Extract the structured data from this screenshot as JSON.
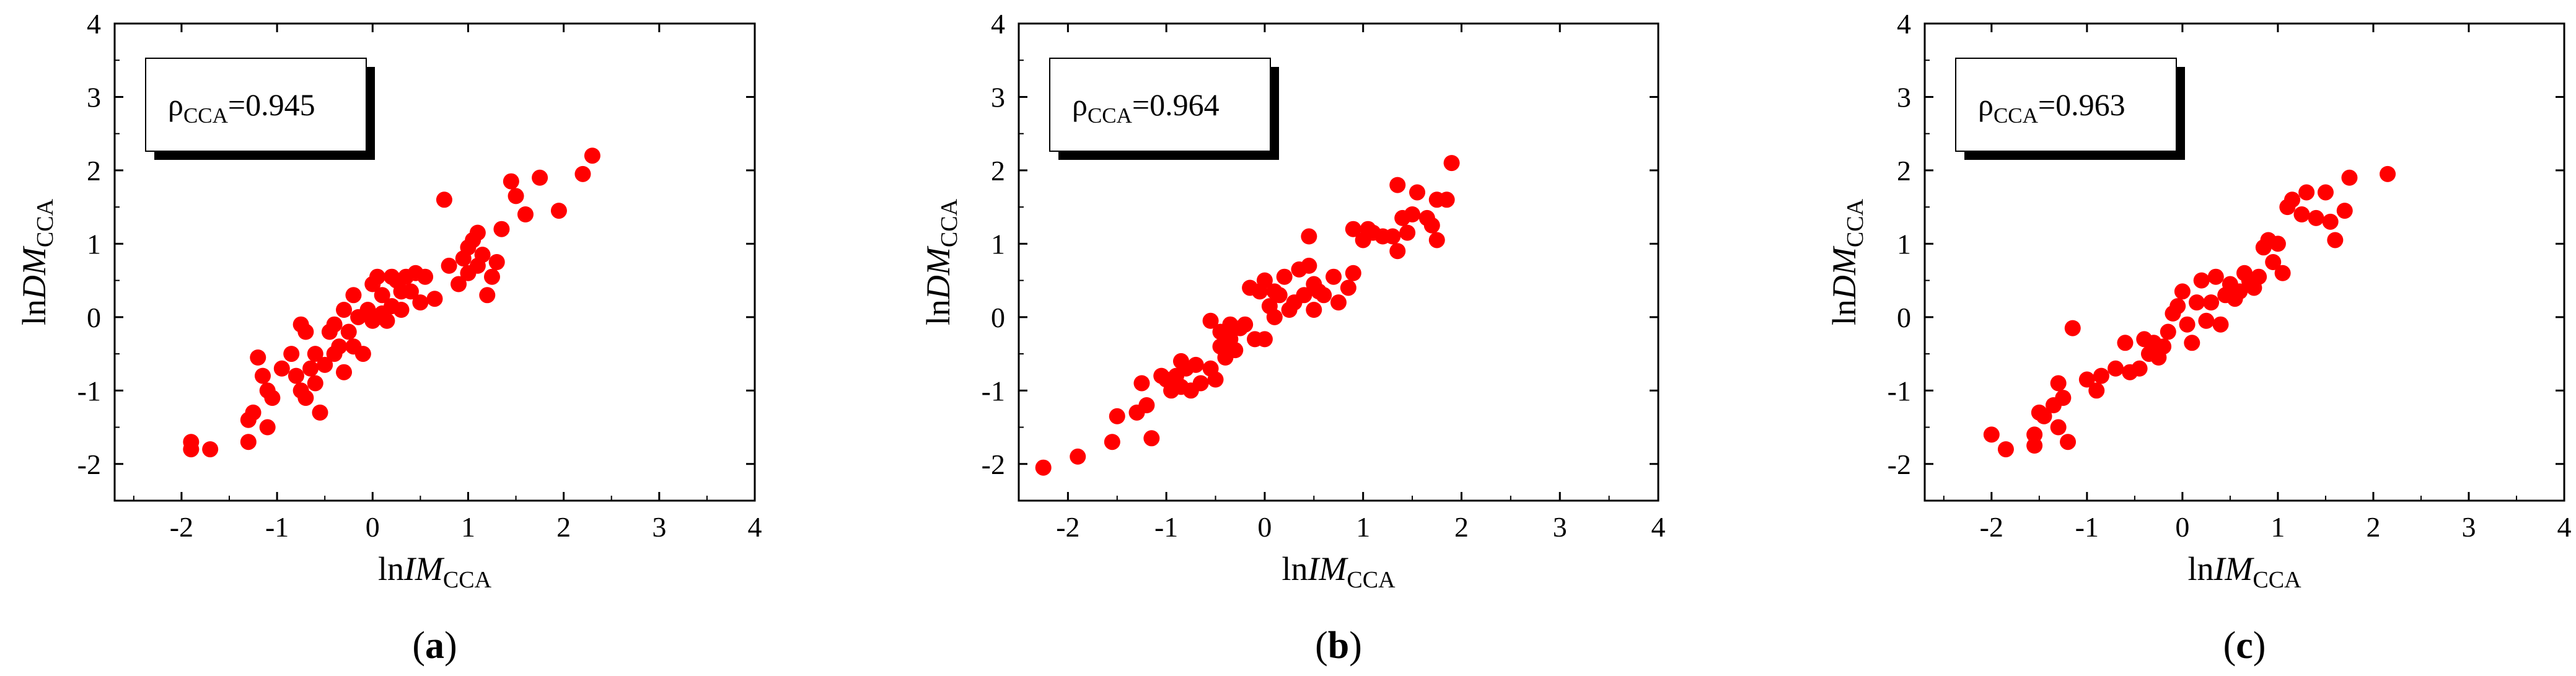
{
  "chart_data": [
    {
      "type": "scatter",
      "panel_label": "a",
      "xlabel": {
        "prefix": "ln",
        "italic": "IM",
        "sub": "CCA"
      },
      "ylabel": {
        "prefix": "ln",
        "italic": "DM",
        "sub": "CCA"
      },
      "xlim": [
        -2.7,
        4
      ],
      "ylim": [
        -2.5,
        4
      ],
      "xticks": [
        -2,
        -1,
        0,
        1,
        2,
        3,
        4
      ],
      "yticks": [
        -2,
        -1,
        0,
        1,
        2,
        3,
        4
      ],
      "legend": {
        "label": "ρ",
        "sub": "CCA",
        "value": "=0.945",
        "position": "top-left"
      },
      "marker_color": "#ff0000",
      "points": [
        [
          -1.9,
          -1.7
        ],
        [
          -1.9,
          -1.8
        ],
        [
          -1.7,
          -1.8
        ],
        [
          -1.3,
          -1.7
        ],
        [
          -1.3,
          -1.4
        ],
        [
          -1.25,
          -1.3
        ],
        [
          -1.1,
          -1.5
        ],
        [
          -1.2,
          -0.55
        ],
        [
          -1.15,
          -0.8
        ],
        [
          -1.1,
          -1.0
        ],
        [
          -1.05,
          -1.1
        ],
        [
          -0.95,
          -0.7
        ],
        [
          -0.85,
          -0.5
        ],
        [
          -0.8,
          -0.8
        ],
        [
          -0.75,
          -1.0
        ],
        [
          -0.7,
          -1.1
        ],
        [
          -0.75,
          -0.1
        ],
        [
          -0.7,
          -0.2
        ],
        [
          -0.65,
          -0.7
        ],
        [
          -0.6,
          -0.5
        ],
        [
          -0.6,
          -0.9
        ],
        [
          -0.55,
          -1.3
        ],
        [
          -0.5,
          -0.65
        ],
        [
          -0.45,
          -0.2
        ],
        [
          -0.4,
          -0.5
        ],
        [
          -0.4,
          -0.1
        ],
        [
          -0.35,
          -0.4
        ],
        [
          -0.3,
          0.1
        ],
        [
          -0.3,
          -0.75
        ],
        [
          -0.25,
          -0.2
        ],
        [
          -0.2,
          0.3
        ],
        [
          -0.2,
          -0.4
        ],
        [
          -0.15,
          0.0
        ],
        [
          -0.1,
          -0.5
        ],
        [
          -0.05,
          0.1
        ],
        [
          0.0,
          0.45
        ],
        [
          0.0,
          -0.05
        ],
        [
          0.05,
          0.55
        ],
        [
          0.05,
          0.0
        ],
        [
          0.1,
          0.3
        ],
        [
          0.1,
          0.05
        ],
        [
          0.15,
          -0.05
        ],
        [
          0.2,
          0.55
        ],
        [
          0.2,
          0.15
        ],
        [
          0.25,
          0.5
        ],
        [
          0.3,
          0.35
        ],
        [
          0.3,
          0.1
        ],
        [
          0.35,
          0.55
        ],
        [
          0.4,
          0.35
        ],
        [
          0.45,
          0.6
        ],
        [
          0.5,
          0.2
        ],
        [
          0.55,
          0.55
        ],
        [
          0.65,
          0.25
        ],
        [
          0.75,
          1.6
        ],
        [
          0.8,
          0.7
        ],
        [
          0.9,
          0.45
        ],
        [
          0.95,
          0.8
        ],
        [
          1.0,
          0.95
        ],
        [
          1.0,
          0.6
        ],
        [
          1.05,
          1.05
        ],
        [
          1.1,
          0.7
        ],
        [
          1.1,
          1.15
        ],
        [
          1.15,
          0.85
        ],
        [
          1.2,
          0.3
        ],
        [
          1.25,
          0.55
        ],
        [
          1.3,
          0.75
        ],
        [
          1.35,
          1.2
        ],
        [
          1.45,
          1.85
        ],
        [
          1.5,
          1.65
        ],
        [
          1.6,
          1.4
        ],
        [
          1.75,
          1.9
        ],
        [
          1.95,
          1.45
        ],
        [
          2.2,
          1.95
        ],
        [
          2.3,
          2.2
        ]
      ]
    },
    {
      "type": "scatter",
      "panel_label": "b",
      "xlabel": {
        "prefix": "ln",
        "italic": "IM",
        "sub": "CCA"
      },
      "ylabel": {
        "prefix": "ln",
        "italic": "DM",
        "sub": "CCA"
      },
      "xlim": [
        -2.5,
        4
      ],
      "ylim": [
        -2.5,
        4
      ],
      "xticks": [
        -2,
        -1,
        0,
        1,
        2,
        3,
        4
      ],
      "yticks": [
        -2,
        -1,
        0,
        1,
        2,
        3,
        4
      ],
      "legend": {
        "label": "ρ",
        "sub": "CCA",
        "value": "=0.964",
        "position": "top-left"
      },
      "marker_color": "#ff0000",
      "points": [
        [
          -2.25,
          -2.05
        ],
        [
          -1.9,
          -1.9
        ],
        [
          -1.55,
          -1.7
        ],
        [
          -1.5,
          -1.35
        ],
        [
          -1.3,
          -1.3
        ],
        [
          -1.25,
          -0.9
        ],
        [
          -1.2,
          -1.2
        ],
        [
          -1.15,
          -1.65
        ],
        [
          -1.05,
          -0.8
        ],
        [
          -1.0,
          -0.85
        ],
        [
          -0.95,
          -1.0
        ],
        [
          -0.9,
          -0.8
        ],
        [
          -0.85,
          -0.6
        ],
        [
          -0.85,
          -0.95
        ],
        [
          -0.8,
          -0.7
        ],
        [
          -0.75,
          -1.0
        ],
        [
          -0.7,
          -0.65
        ],
        [
          -0.65,
          -0.9
        ],
        [
          -0.55,
          -0.7
        ],
        [
          -0.55,
          -0.05
        ],
        [
          -0.5,
          -0.85
        ],
        [
          -0.45,
          -0.4
        ],
        [
          -0.45,
          -0.2
        ],
        [
          -0.4,
          -0.55
        ],
        [
          -0.35,
          -0.1
        ],
        [
          -0.35,
          -0.3
        ],
        [
          -0.3,
          -0.45
        ],
        [
          -0.25,
          -0.15
        ],
        [
          -0.2,
          -0.1
        ],
        [
          -0.15,
          0.4
        ],
        [
          -0.1,
          -0.3
        ],
        [
          -0.05,
          0.35
        ],
        [
          0.0,
          -0.3
        ],
        [
          0.0,
          0.5
        ],
        [
          0.05,
          0.15
        ],
        [
          0.1,
          0.0
        ],
        [
          0.1,
          0.35
        ],
        [
          0.15,
          0.3
        ],
        [
          0.2,
          0.55
        ],
        [
          0.25,
          0.1
        ],
        [
          0.3,
          0.2
        ],
        [
          0.35,
          0.65
        ],
        [
          0.4,
          0.3
        ],
        [
          0.45,
          1.1
        ],
        [
          0.45,
          0.7
        ],
        [
          0.5,
          0.1
        ],
        [
          0.5,
          0.45
        ],
        [
          0.55,
          0.35
        ],
        [
          0.6,
          0.3
        ],
        [
          0.7,
          0.55
        ],
        [
          0.75,
          0.2
        ],
        [
          0.85,
          0.4
        ],
        [
          0.9,
          0.6
        ],
        [
          0.9,
          1.2
        ],
        [
          1.0,
          1.05
        ],
        [
          1.05,
          1.2
        ],
        [
          1.1,
          1.15
        ],
        [
          1.2,
          1.1
        ],
        [
          1.3,
          1.1
        ],
        [
          1.35,
          0.9
        ],
        [
          1.35,
          1.8
        ],
        [
          1.4,
          1.35
        ],
        [
          1.45,
          1.15
        ],
        [
          1.5,
          1.4
        ],
        [
          1.55,
          1.7
        ],
        [
          1.65,
          1.35
        ],
        [
          1.7,
          1.25
        ],
        [
          1.75,
          1.05
        ],
        [
          1.75,
          1.6
        ],
        [
          1.85,
          1.6
        ],
        [
          1.9,
          2.1
        ]
      ]
    },
    {
      "type": "scatter",
      "panel_label": "c",
      "xlabel": {
        "prefix": "ln",
        "italic": "IM",
        "sub": "CCA"
      },
      "ylabel": {
        "prefix": "ln",
        "italic": "DM",
        "sub": "CCA"
      },
      "xlim": [
        -2.7,
        4
      ],
      "ylim": [
        -2.5,
        4
      ],
      "xticks": [
        -2,
        -1,
        0,
        1,
        2,
        3,
        4
      ],
      "yticks": [
        -2,
        -1,
        0,
        1,
        2,
        3,
        4
      ],
      "legend": {
        "label": "ρ",
        "sub": "CCA",
        "value": "=0.963",
        "position": "top-left"
      },
      "marker_color": "#ff0000",
      "points": [
        [
          -2.0,
          -1.6
        ],
        [
          -1.85,
          -1.8
        ],
        [
          -1.55,
          -1.6
        ],
        [
          -1.55,
          -1.75
        ],
        [
          -1.5,
          -1.3
        ],
        [
          -1.45,
          -1.35
        ],
        [
          -1.35,
          -1.2
        ],
        [
          -1.3,
          -1.5
        ],
        [
          -1.3,
          -0.9
        ],
        [
          -1.25,
          -1.1
        ],
        [
          -1.2,
          -1.7
        ],
        [
          -1.15,
          -0.15
        ],
        [
          -1.0,
          -0.85
        ],
        [
          -0.9,
          -1.0
        ],
        [
          -0.85,
          -0.8
        ],
        [
          -0.7,
          -0.7
        ],
        [
          -0.6,
          -0.35
        ],
        [
          -0.55,
          -0.75
        ],
        [
          -0.45,
          -0.7
        ],
        [
          -0.4,
          -0.3
        ],
        [
          -0.35,
          -0.5
        ],
        [
          -0.3,
          -0.35
        ],
        [
          -0.25,
          -0.55
        ],
        [
          -0.2,
          -0.4
        ],
        [
          -0.15,
          -0.2
        ],
        [
          -0.1,
          0.05
        ],
        [
          -0.05,
          0.15
        ],
        [
          0.0,
          0.35
        ],
        [
          0.05,
          -0.1
        ],
        [
          0.1,
          -0.35
        ],
        [
          0.15,
          0.2
        ],
        [
          0.2,
          0.5
        ],
        [
          0.25,
          -0.05
        ],
        [
          0.3,
          0.2
        ],
        [
          0.35,
          0.55
        ],
        [
          0.4,
          -0.1
        ],
        [
          0.45,
          0.3
        ],
        [
          0.5,
          0.45
        ],
        [
          0.55,
          0.25
        ],
        [
          0.6,
          0.35
        ],
        [
          0.65,
          0.6
        ],
        [
          0.7,
          0.5
        ],
        [
          0.75,
          0.4
        ],
        [
          0.8,
          0.55
        ],
        [
          0.85,
          0.95
        ],
        [
          0.9,
          1.05
        ],
        [
          0.95,
          0.75
        ],
        [
          1.0,
          1.0
        ],
        [
          1.05,
          0.6
        ],
        [
          1.1,
          1.5
        ],
        [
          1.15,
          1.6
        ],
        [
          1.25,
          1.4
        ],
        [
          1.3,
          1.7
        ],
        [
          1.4,
          1.35
        ],
        [
          1.5,
          1.7
        ],
        [
          1.55,
          1.3
        ],
        [
          1.6,
          1.05
        ],
        [
          1.7,
          1.45
        ],
        [
          1.75,
          1.9
        ],
        [
          2.15,
          1.95
        ]
      ]
    }
  ]
}
